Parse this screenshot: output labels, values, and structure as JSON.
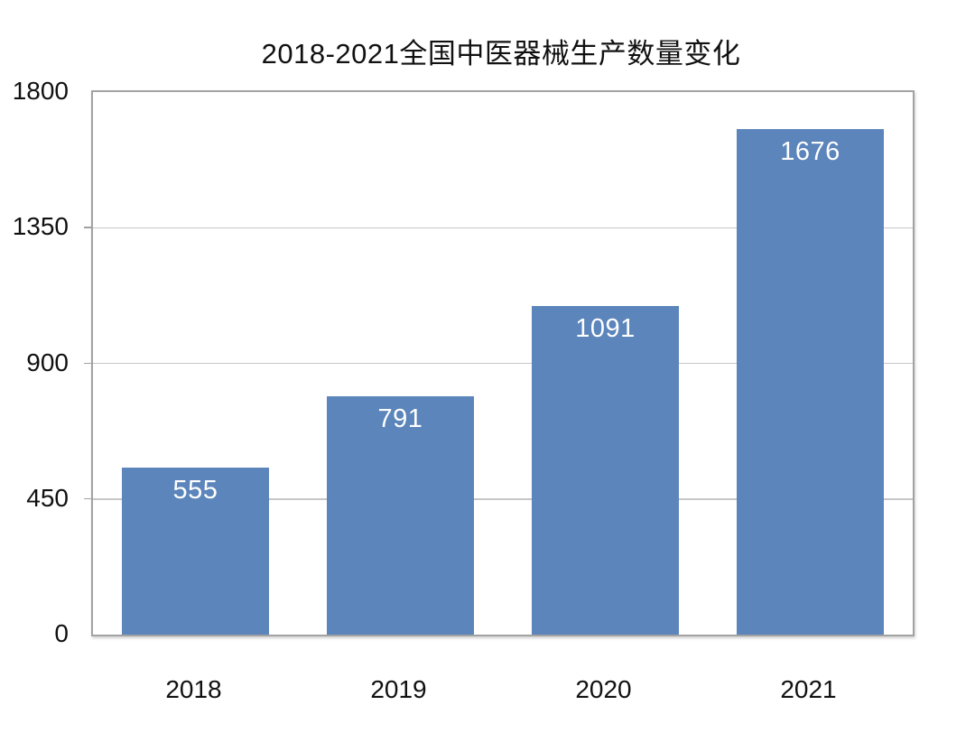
{
  "chart_data": {
    "type": "bar",
    "title": "2018-2021全国中医器械生产数量变化",
    "categories": [
      "2018",
      "2019",
      "2020",
      "2021"
    ],
    "values": [
      555,
      791,
      1091,
      1676
    ],
    "xlabel": "",
    "ylabel": "",
    "ylim": [
      0,
      1800
    ],
    "yticks": [
      0,
      450,
      900,
      1350,
      1800
    ],
    "grid": true,
    "legend": "none",
    "colors": {
      "bar": "#5b85bb",
      "bar_label": "#ffffff",
      "gridline": "#c6c6c6",
      "plot_border": "#a2a2a2",
      "axis_text": "#111111"
    }
  }
}
